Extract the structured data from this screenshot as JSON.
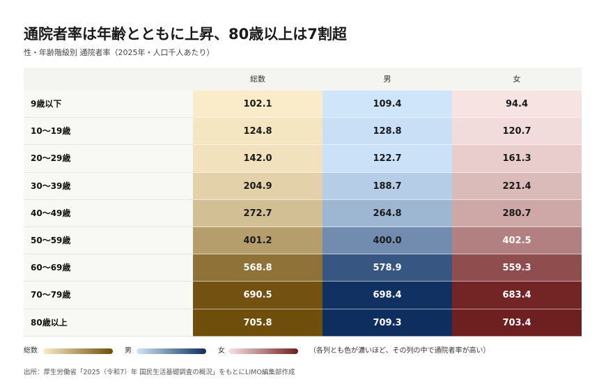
{
  "title": "通院者率は年齢とともに上昇、80歳以上は7割超",
  "subtitle": "性・年齢階級別 通院者率（2025年・人口千人あたり）",
  "colors": {
    "total_light": "#faecc9",
    "total_dark": "#6f4e0c",
    "male_light": "#cfe5fa",
    "male_dark": "#0d2e5f",
    "female_light": "#f8e3e3",
    "female_dark": "#6e1f1f"
  },
  "legend": {
    "total": "総数",
    "male": "男",
    "female": "女",
    "note": "（各列とも色が濃いほど、その列の中で通院者率が高い）"
  },
  "source": "出所：厚生労働省「2025（令和7）年 国民生活基礎調査の概況」をもとにLIMO編集部作成",
  "chart_data": {
    "type": "table",
    "columns": [
      "総数",
      "男",
      "女"
    ],
    "rows": [
      {
        "label": "9歳以下",
        "values": [
          "102.1",
          "109.4",
          "94.4"
        ]
      },
      {
        "label": "10〜19歳",
        "values": [
          "124.8",
          "128.8",
          "120.7"
        ]
      },
      {
        "label": "20〜29歳",
        "values": [
          "142.0",
          "122.7",
          "161.3"
        ]
      },
      {
        "label": "30〜39歳",
        "values": [
          "204.9",
          "188.7",
          "221.4"
        ]
      },
      {
        "label": "40〜49歳",
        "values": [
          "272.7",
          "264.8",
          "280.7"
        ]
      },
      {
        "label": "50〜59歳",
        "values": [
          "401.2",
          "400.0",
          "402.5"
        ]
      },
      {
        "label": "60〜69歳",
        "values": [
          "568.8",
          "578.9",
          "559.3"
        ]
      },
      {
        "label": "70〜79歳",
        "values": [
          "690.5",
          "698.4",
          "683.4"
        ]
      },
      {
        "label": "80歳以上",
        "values": [
          "705.8",
          "709.3",
          "703.4"
        ]
      }
    ]
  }
}
